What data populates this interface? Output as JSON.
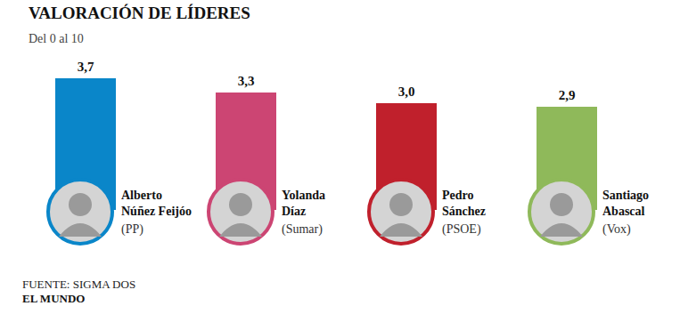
{
  "chart_data": {
    "type": "bar",
    "title": "VALORACIÓN DE LÍDERES",
    "subtitle": "Del 0 al 10",
    "categories": [
      "Alberto Núñez Feijóo",
      "Yolanda Díaz",
      "Pedro Sánchez",
      "Santiago Abascal"
    ],
    "parties": [
      "(PP)",
      "(Sumar)",
      "(PSOE)",
      "(Vox)"
    ],
    "values": [
      3.7,
      3.3,
      3.0,
      2.9
    ],
    "value_labels": [
      "3,7",
      "3,3",
      "3,0",
      "2,9"
    ],
    "colors": [
      "#0a86c9",
      "#cc4573",
      "#c0202c",
      "#8fb95a"
    ],
    "ylim": [
      0,
      4
    ],
    "data_labels": true,
    "tick_labels": false,
    "grid": false,
    "source": "FUENTE: SIGMA DOS",
    "publisher": "EL MUNDO"
  }
}
